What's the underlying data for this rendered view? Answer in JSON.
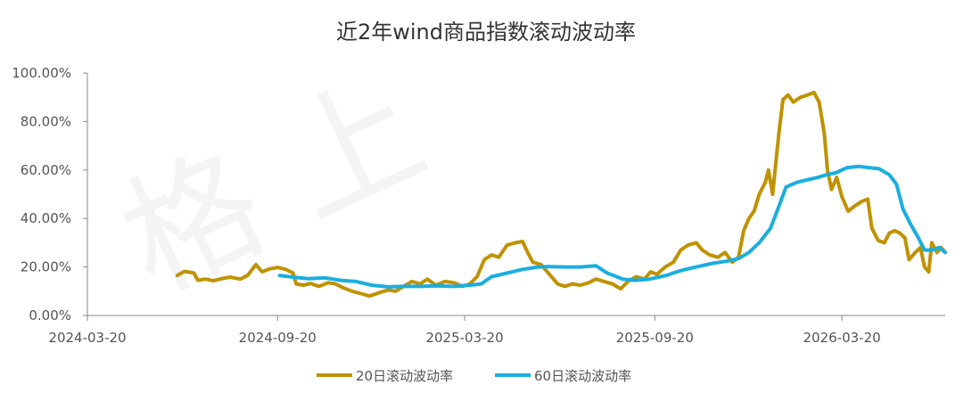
{
  "chart_data": {
    "type": "line",
    "title": "近2年wind商品指数滚动波动率",
    "xlabel": "",
    "ylabel": "",
    "ylim": [
      0,
      100
    ],
    "yticks": [
      "0.00%",
      "20.00%",
      "40.00%",
      "60.00%",
      "80.00%",
      "100.00%"
    ],
    "yticks_values": [
      0,
      20,
      40,
      60,
      80,
      100
    ],
    "xticks": [
      "2024-03-20",
      "2024-09-20",
      "2025-03-20",
      "2025-09-20",
      "2026-03-20"
    ],
    "xlim": [
      "2024-03-20",
      "2026-06-28"
    ],
    "grid": false,
    "legend": "bottom",
    "series": [
      {
        "name": "20日滚动波动率",
        "color": "#C09200",
        "points": [
          [
            "2024-06-15",
            16.5
          ],
          [
            "2024-06-22",
            18.2
          ],
          [
            "2024-07-01",
            17.5
          ],
          [
            "2024-07-05",
            14.5
          ],
          [
            "2024-07-12",
            15.0
          ],
          [
            "2024-07-20",
            14.3
          ],
          [
            "2024-07-28",
            15.2
          ],
          [
            "2024-08-05",
            15.8
          ],
          [
            "2024-08-15",
            15.0
          ],
          [
            "2024-08-22",
            16.5
          ],
          [
            "2024-08-30",
            21.0
          ],
          [
            "2024-09-05",
            18.0
          ],
          [
            "2024-09-12",
            19.2
          ],
          [
            "2024-09-20",
            19.8
          ],
          [
            "2024-09-28",
            19.0
          ],
          [
            "2024-10-05",
            17.5
          ],
          [
            "2024-10-08",
            13.0
          ],
          [
            "2024-10-15",
            12.5
          ],
          [
            "2024-10-22",
            13.2
          ],
          [
            "2024-10-30",
            12.0
          ],
          [
            "2024-11-08",
            13.5
          ],
          [
            "2024-11-15",
            13.0
          ],
          [
            "2024-11-22",
            11.5
          ],
          [
            "2024-12-01",
            10.0
          ],
          [
            "2024-12-10",
            9.0
          ],
          [
            "2024-12-18",
            8.0
          ],
          [
            "2024-12-28",
            9.5
          ],
          [
            "2025-01-05",
            10.5
          ],
          [
            "2025-01-12",
            10.0
          ],
          [
            "2025-01-20",
            12.0
          ],
          [
            "2025-01-28",
            14.0
          ],
          [
            "2025-02-05",
            13.0
          ],
          [
            "2025-02-12",
            15.0
          ],
          [
            "2025-02-20",
            12.5
          ],
          [
            "2025-03-01",
            14.0
          ],
          [
            "2025-03-10",
            13.5
          ],
          [
            "2025-03-18",
            12.0
          ],
          [
            "2025-03-25",
            13.0
          ],
          [
            "2025-04-01",
            16.0
          ],
          [
            "2025-04-08",
            23.0
          ],
          [
            "2025-04-15",
            25.0
          ],
          [
            "2025-04-22",
            24.0
          ],
          [
            "2025-04-30",
            29.0
          ],
          [
            "2025-05-08",
            30.0
          ],
          [
            "2025-05-15",
            30.5
          ],
          [
            "2025-05-20",
            26.0
          ],
          [
            "2025-05-25",
            22.0
          ],
          [
            "2025-06-02",
            21.0
          ],
          [
            "2025-06-10",
            17.0
          ],
          [
            "2025-06-18",
            13.0
          ],
          [
            "2025-06-25",
            12.0
          ],
          [
            "2025-07-02",
            13.0
          ],
          [
            "2025-07-10",
            12.5
          ],
          [
            "2025-07-18",
            13.5
          ],
          [
            "2025-07-25",
            15.0
          ],
          [
            "2025-08-02",
            14.0
          ],
          [
            "2025-08-10",
            13.0
          ],
          [
            "2025-08-18",
            11.0
          ],
          [
            "2025-08-25",
            14.0
          ],
          [
            "2025-09-02",
            16.0
          ],
          [
            "2025-09-10",
            15.0
          ],
          [
            "2025-09-16",
            18.0
          ],
          [
            "2025-09-22",
            17.0
          ],
          [
            "2025-09-30",
            20.0
          ],
          [
            "2025-10-08",
            22.0
          ],
          [
            "2025-10-15",
            27.0
          ],
          [
            "2025-10-22",
            29.0
          ],
          [
            "2025-10-30",
            30.0
          ],
          [
            "2025-11-05",
            27.0
          ],
          [
            "2025-11-12",
            25.0
          ],
          [
            "2025-11-20",
            24.0
          ],
          [
            "2025-11-27",
            26.0
          ],
          [
            "2025-12-04",
            22.0
          ],
          [
            "2025-12-10",
            24.0
          ],
          [
            "2025-12-15",
            35.0
          ],
          [
            "2025-12-20",
            40.0
          ],
          [
            "2025-12-25",
            43.0
          ],
          [
            "2025-12-30",
            50.0
          ],
          [
            "2026-01-05",
            55.0
          ],
          [
            "2026-01-08",
            60.0
          ],
          [
            "2026-01-12",
            50.0
          ],
          [
            "2026-01-18",
            75.0
          ],
          [
            "2026-01-22",
            89.0
          ],
          [
            "2026-01-27",
            91.0
          ],
          [
            "2026-02-01",
            88.0
          ],
          [
            "2026-02-08",
            90.0
          ],
          [
            "2026-02-15",
            91.0
          ],
          [
            "2026-02-21",
            92.0
          ],
          [
            "2026-02-26",
            88.0
          ],
          [
            "2026-03-03",
            75.0
          ],
          [
            "2026-03-06",
            60.0
          ],
          [
            "2026-03-10",
            52.0
          ],
          [
            "2026-03-15",
            57.0
          ],
          [
            "2026-03-20",
            49.0
          ],
          [
            "2026-03-26",
            43.0
          ],
          [
            "2026-04-01",
            45.0
          ],
          [
            "2026-04-08",
            47.0
          ],
          [
            "2026-04-14",
            48.0
          ],
          [
            "2026-04-18",
            36.0
          ],
          [
            "2026-04-24",
            31.0
          ],
          [
            "2026-04-30",
            30.0
          ],
          [
            "2026-05-05",
            34.0
          ],
          [
            "2026-05-10",
            35.0
          ],
          [
            "2026-05-15",
            34.0
          ],
          [
            "2026-05-20",
            32.0
          ],
          [
            "2026-05-24",
            23.0
          ],
          [
            "2026-05-30",
            26.0
          ],
          [
            "2026-06-04",
            28.0
          ],
          [
            "2026-06-08",
            20.0
          ],
          [
            "2026-06-12",
            18.0
          ],
          [
            "2026-06-15",
            30.0
          ],
          [
            "2026-06-20",
            26.0
          ],
          [
            "2026-06-24",
            28.0
          ],
          [
            "2026-06-28",
            26.0
          ]
        ]
      },
      {
        "name": "60日滚动波动率",
        "color": "#1AAEE0",
        "points": [
          [
            "2024-09-22",
            16.5
          ],
          [
            "2024-10-05",
            15.8
          ],
          [
            "2024-10-20",
            15.2
          ],
          [
            "2024-11-05",
            15.5
          ],
          [
            "2024-11-20",
            14.5
          ],
          [
            "2024-12-05",
            14.0
          ],
          [
            "2024-12-20",
            12.5
          ],
          [
            "2025-01-05",
            11.8
          ],
          [
            "2025-01-20",
            12.0
          ],
          [
            "2025-02-05",
            12.0
          ],
          [
            "2025-02-20",
            12.2
          ],
          [
            "2025-03-10",
            12.0
          ],
          [
            "2025-03-25",
            12.5
          ],
          [
            "2025-04-05",
            13.0
          ],
          [
            "2025-04-15",
            16.0
          ],
          [
            "2025-04-30",
            17.5
          ],
          [
            "2025-05-15",
            19.0
          ],
          [
            "2025-05-30",
            20.0
          ],
          [
            "2025-06-10",
            20.2
          ],
          [
            "2025-06-25",
            20.0
          ],
          [
            "2025-07-10",
            20.0
          ],
          [
            "2025-07-25",
            20.5
          ],
          [
            "2025-08-05",
            17.5
          ],
          [
            "2025-08-20",
            15.0
          ],
          [
            "2025-09-01",
            14.5
          ],
          [
            "2025-09-15",
            15.0
          ],
          [
            "2025-10-01",
            16.5
          ],
          [
            "2025-10-15",
            18.5
          ],
          [
            "2025-10-30",
            20.0
          ],
          [
            "2025-11-15",
            21.5
          ],
          [
            "2025-11-30",
            22.5
          ],
          [
            "2025-12-10",
            23.5
          ],
          [
            "2025-12-20",
            26.0
          ],
          [
            "2025-12-30",
            30.0
          ],
          [
            "2026-01-10",
            36.0
          ],
          [
            "2026-01-18",
            45.0
          ],
          [
            "2026-01-25",
            53.0
          ],
          [
            "2026-02-05",
            55.0
          ],
          [
            "2026-02-15",
            56.0
          ],
          [
            "2026-02-25",
            57.0
          ],
          [
            "2026-03-05",
            58.0
          ],
          [
            "2026-03-15",
            59.0
          ],
          [
            "2026-03-25",
            61.0
          ],
          [
            "2026-04-05",
            61.5
          ],
          [
            "2026-04-15",
            61.0
          ],
          [
            "2026-04-25",
            60.5
          ],
          [
            "2026-05-05",
            58.0
          ],
          [
            "2026-05-12",
            54.0
          ],
          [
            "2026-05-18",
            44.0
          ],
          [
            "2026-05-25",
            38.0
          ],
          [
            "2026-06-02",
            32.0
          ],
          [
            "2026-06-08",
            27.0
          ],
          [
            "2026-06-15",
            27.0
          ],
          [
            "2026-06-22",
            28.0
          ],
          [
            "2026-06-28",
            26.0
          ]
        ]
      }
    ]
  }
}
